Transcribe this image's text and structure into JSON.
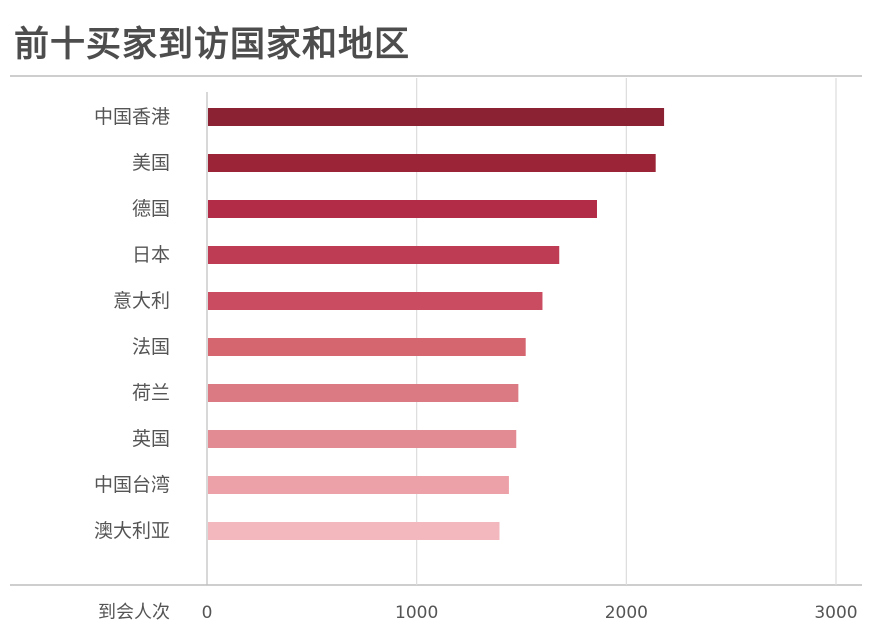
{
  "chart_data": {
    "type": "bar",
    "orientation": "horizontal",
    "title": "前十买家到访国家和地区",
    "xlabel": "到会人次",
    "ylabel": "",
    "categories": [
      "中国香港",
      "美国",
      "德国",
      "日本",
      "意大利",
      "法国",
      "荷兰",
      "英国",
      "中国台湾",
      "澳大利亚"
    ],
    "values": [
      2180,
      2140,
      1860,
      1680,
      1600,
      1520,
      1485,
      1475,
      1440,
      1395
    ],
    "xlim": [
      0,
      3000
    ],
    "xticks": [
      0,
      1000,
      2000,
      3000
    ],
    "grid": true,
    "legend": "none",
    "colors": [
      "#8a2234",
      "#9b2537",
      "#b22b47",
      "#bf3d54",
      "#c94c61",
      "#d56670",
      "#dc7a83",
      "#e38b93",
      "#eca1a8",
      "#f3b7be"
    ],
    "line_color": "#bdbdbd",
    "grid_color": "#dcdcdc"
  }
}
